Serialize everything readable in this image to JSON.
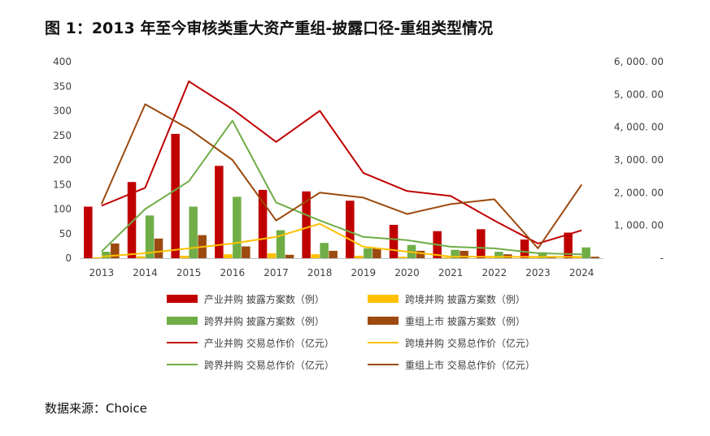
{
  "title": "图 1：2013 年至今审核类重大资产重组-披露口径-重组类型情况",
  "source": "数据来源：Choice",
  "chart_data": {
    "type": "bar+line",
    "categories": [
      "2013",
      "2014",
      "2015",
      "2016",
      "2017",
      "2018",
      "2019",
      "2020",
      "2021",
      "2022",
      "2023",
      "2024"
    ],
    "left_axis": {
      "min": 0,
      "max": 400,
      "step": 50,
      "ticks": [
        "0",
        "50",
        "100",
        "150",
        "200",
        "250",
        "300",
        "350",
        "400"
      ]
    },
    "right_axis": {
      "min": 0,
      "max": 6000,
      "step": 1000,
      "ticks": [
        "-",
        "1, 000. 00",
        "2, 000. 00",
        "3, 000. 00",
        "4, 000. 00",
        "5, 000. 00",
        "6, 000. 00"
      ]
    },
    "bar_series": [
      {
        "name": "产业并购 披露方案数（例）",
        "color": "#C00000",
        "values": [
          105,
          155,
          253,
          188,
          139,
          136,
          117,
          68,
          55,
          59,
          38,
          52
        ]
      },
      {
        "name": "跨境并购 披露方案数（例）",
        "color": "#FFC000",
        "values": [
          2,
          4,
          5,
          8,
          10,
          8,
          5,
          3,
          2,
          1,
          1,
          1
        ]
      },
      {
        "name": "跨界并购 披露方案数（例）",
        "color": "#70AD47",
        "values": [
          13,
          87,
          105,
          125,
          57,
          31,
          20,
          27,
          17,
          13,
          12,
          22
        ]
      },
      {
        "name": "重组上市 披露方案数（例）",
        "color": "#9C4A0F",
        "values": [
          30,
          40,
          47,
          24,
          7,
          15,
          20,
          15,
          15,
          8,
          4,
          3
        ]
      }
    ],
    "line_series": [
      {
        "name": "产业并购 交易总作价（亿元）",
        "color": "#C00000",
        "values": [
          1600,
          2150,
          5400,
          4550,
          3550,
          4500,
          2600,
          2050,
          1900,
          1150,
          450,
          850
        ]
      },
      {
        "name": "跨境并购 交易总作价（亿元）",
        "color": "#FFC000",
        "values": [
          50,
          150,
          300,
          450,
          650,
          1050,
          350,
          200,
          50,
          40,
          40,
          40
        ]
      },
      {
        "name": "跨界并购 交易总作价（亿元）",
        "color": "#70AD47",
        "values": [
          200,
          1500,
          2350,
          4200,
          1700,
          1150,
          650,
          550,
          350,
          300,
          150,
          120
        ]
      },
      {
        "name": "重组上市 交易总作价（亿元）",
        "color": "#9C4A0F",
        "values": [
          1650,
          4700,
          3950,
          3000,
          1150,
          2000,
          1850,
          1350,
          1650,
          1800,
          300,
          2250
        ]
      }
    ]
  }
}
